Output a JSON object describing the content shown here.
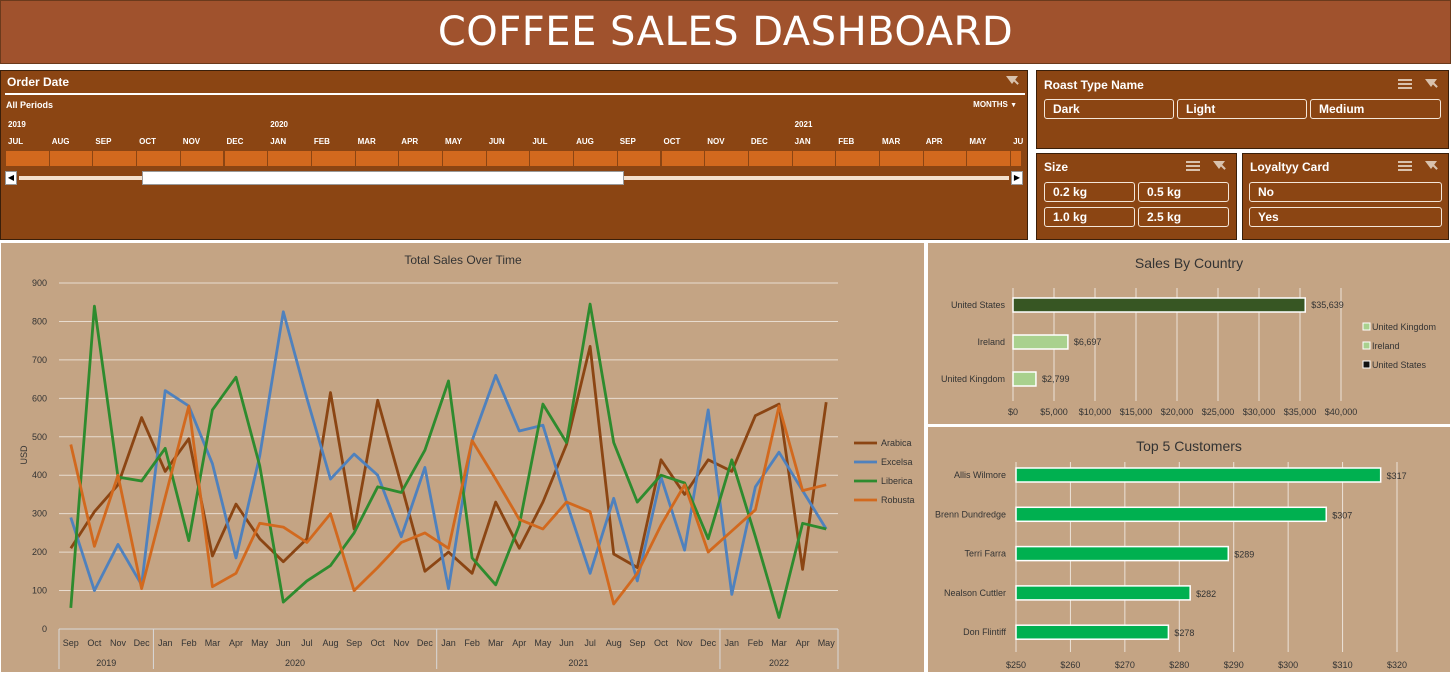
{
  "header": {
    "title": "COFFEE SALES DASHBOARD"
  },
  "colors": {
    "title_bar": "#A0522D",
    "panel": "#8B4513",
    "chart_bg": "#C4A484",
    "timeline_bar": "#D2691E",
    "arabica": "#8B4513",
    "excelsa": "#4F81BD",
    "liberica": "#2E8B2E",
    "robusta": "#D2691E",
    "us_bar": "#375623",
    "light_green": "#A9D18E",
    "customer_bar": "#00B050"
  },
  "order_date": {
    "title": "Order Date",
    "period_label": "All Periods",
    "level": "MONTHS",
    "years": [
      "2019",
      "2020",
      "2021"
    ],
    "months": [
      "JUL",
      "AUG",
      "SEP",
      "OCT",
      "NOV",
      "DEC",
      "JAN",
      "FEB",
      "MAR",
      "APR",
      "MAY",
      "JUN",
      "JUL",
      "AUG",
      "SEP",
      "OCT",
      "NOV",
      "DEC",
      "JAN",
      "FEB",
      "MAR",
      "APR",
      "MAY",
      "JU"
    ]
  },
  "roast": {
    "title": "Roast Type Name",
    "items": [
      "Dark",
      "Light",
      "Medium"
    ]
  },
  "size": {
    "title": "Size",
    "items": [
      "0.2 kg",
      "0.5 kg",
      "1.0 kg",
      "2.5 kg"
    ]
  },
  "loyalty": {
    "title": "Loyaltyy Card",
    "items": [
      "No",
      "Yes"
    ]
  },
  "sales_chart": {
    "title": "Total Sales Over Time",
    "ylabel": "USD",
    "y_ticks": [
      "0",
      "100",
      "200",
      "300",
      "400",
      "500",
      "600",
      "700",
      "800",
      "900"
    ],
    "months": [
      "Sep",
      "Oct",
      "Nov",
      "Dec",
      "Jan",
      "Feb",
      "Mar",
      "Apr",
      "May",
      "Jun",
      "Jul",
      "Aug",
      "Sep",
      "Oct",
      "Nov",
      "Dec",
      "Jan",
      "Feb",
      "Mar",
      "Apr",
      "May",
      "Jun",
      "Jul",
      "Aug",
      "Sep",
      "Oct",
      "Nov",
      "Dec",
      "Jan",
      "Feb",
      "Mar",
      "Apr",
      "May"
    ],
    "years": [
      "2019",
      "2020",
      "2021",
      "2022"
    ],
    "legend": [
      "Arabica",
      "Excelsa",
      "Liberica",
      "Robusta"
    ]
  },
  "country_chart": {
    "title": "Sales By Country",
    "categories": [
      "United States",
      "Ireland",
      "United Kingdom"
    ],
    "value_labels": [
      "$35,639",
      "$6,697",
      "$2,799"
    ],
    "x_ticks": [
      "$0",
      "$5,000",
      "$10,000",
      "$15,000",
      "$20,000",
      "$25,000",
      "$30,000",
      "$35,000",
      "$40,000"
    ],
    "legend": [
      "United Kingdom",
      "Ireland",
      "United States"
    ]
  },
  "customers_chart": {
    "title": "Top 5 Customers",
    "categories": [
      "Allis Wilmore",
      "Brenn Dundredge",
      "Terri Farra",
      "Nealson Cuttler",
      "Don Flintiff"
    ],
    "value_labels": [
      "$317",
      "$307",
      "$289",
      "$282",
      "$278"
    ],
    "x_ticks": [
      "$250",
      "$260",
      "$270",
      "$280",
      "$290",
      "$300",
      "$310",
      "$320"
    ]
  },
  "chart_data": [
    {
      "type": "line",
      "title": "Total Sales Over Time",
      "ylabel": "USD",
      "ylim": [
        0,
        900
      ],
      "x": [
        "Sep 2019",
        "Oct 2019",
        "Nov 2019",
        "Dec 2019",
        "Jan 2020",
        "Feb 2020",
        "Mar 2020",
        "Apr 2020",
        "May 2020",
        "Jun 2020",
        "Jul 2020",
        "Aug 2020",
        "Sep 2020",
        "Oct 2020",
        "Nov 2020",
        "Dec 2020",
        "Jan 2021",
        "Feb 2021",
        "Mar 2021",
        "Apr 2021",
        "May 2021",
        "Jun 2021",
        "Jul 2021",
        "Aug 2021",
        "Sep 2021",
        "Oct 2021",
        "Nov 2021",
        "Dec 2021",
        "Jan 2022",
        "Feb 2022",
        "Mar 2022",
        "Apr 2022",
        "May 2022"
      ],
      "series": [
        {
          "name": "Arabica",
          "values": [
            210,
            305,
            375,
            550,
            410,
            495,
            190,
            325,
            235,
            175,
            235,
            615,
            260,
            595,
            375,
            150,
            200,
            145,
            330,
            210,
            330,
            480,
            735,
            195,
            160,
            440,
            350,
            440,
            410,
            555,
            585,
            155,
            590
          ]
        },
        {
          "name": "Excelsa",
          "values": [
            290,
            100,
            220,
            115,
            620,
            580,
            430,
            185,
            450,
            825,
            600,
            390,
            455,
            400,
            240,
            420,
            105,
            490,
            660,
            515,
            530,
            330,
            145,
            340,
            125,
            395,
            205,
            570,
            90,
            370,
            460,
            360,
            260
          ]
        },
        {
          "name": "Liberica",
          "values": [
            55,
            840,
            395,
            385,
            470,
            230,
            570,
            655,
            425,
            70,
            125,
            165,
            250,
            370,
            355,
            465,
            645,
            185,
            115,
            270,
            585,
            485,
            845,
            485,
            330,
            400,
            380,
            235,
            440,
            240,
            30,
            275,
            260
          ]
        },
        {
          "name": "Robusta",
          "values": [
            480,
            215,
            400,
            105,
            null,
            580,
            110,
            145,
            275,
            265,
            225,
            300,
            100,
            160,
            225,
            250,
            210,
            490,
            390,
            285,
            260,
            330,
            305,
            65,
            145,
            270,
            375,
            200,
            255,
            310,
            580,
            360,
            375
          ]
        }
      ]
    },
    {
      "type": "bar",
      "title": "Sales By Country",
      "categories": [
        "United States",
        "Ireland",
        "United Kingdom"
      ],
      "values": [
        35639,
        6697,
        2799
      ],
      "xlim": [
        0,
        40000
      ]
    },
    {
      "type": "bar",
      "title": "Top 5 Customers",
      "categories": [
        "Allis Wilmore",
        "Brenn Dundredge",
        "Terri Farra",
        "Nealson Cuttler",
        "Don Flintiff"
      ],
      "values": [
        317,
        307,
        289,
        282,
        278
      ],
      "xlim": [
        250,
        320
      ]
    }
  ]
}
